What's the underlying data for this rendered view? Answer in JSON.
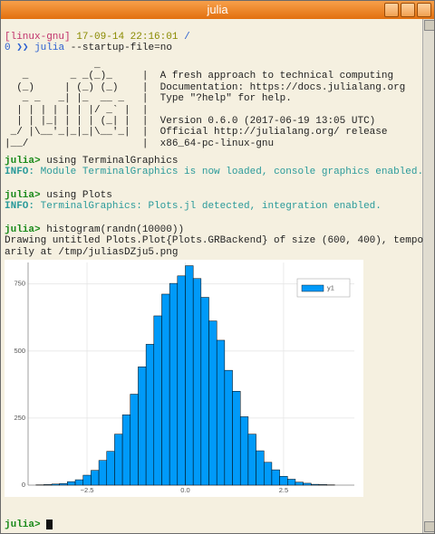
{
  "window": {
    "title": "julia"
  },
  "terminal": {
    "prompt_line": {
      "host": "[linux-gnu]",
      "time": "17-09-14 22:16:01",
      "path": "/"
    },
    "command_line": {
      "status": "0",
      "arrows": "❯❯",
      "program": "julia",
      "args": "--startup-file=no"
    },
    "banner": [
      "               _",
      "   _       _ _(_)_     |  A fresh approach to technical computing",
      "  (_)     | (_) (_)    |  Documentation: https://docs.julialang.org",
      "   _ _   _| |_  __ _   |  Type \"?help\" for help.",
      "  | | | | | | |/ _` |  |",
      "  | | |_| | | | (_| |  |  Version 0.6.0 (2017-06-19 13:05 UTC)",
      " _/ |\\__'_|_|_|\\__'_|  |  Official http://julialang.org/ release",
      "|__/                   |  x86_64-pc-linux-gnu"
    ],
    "entries": [
      {
        "prompt": "julia>",
        "input": "using TerminalGraphics",
        "info_tag": "INFO:",
        "info": "Module TerminalGraphics is now loaded, console graphics enabled."
      },
      {
        "prompt": "julia>",
        "input": "using Plots",
        "info_tag": "INFO:",
        "info": "TerminalGraphics: Plots.jl detected, integration enabled."
      },
      {
        "prompt": "julia>",
        "input": "histogram(randn(10000))",
        "output": [
          "Drawing untitled Plots.Plot{Plots.GRBackend} of size (600, 400), tempo",
          "arily at /tmp/juliasDZju5.png"
        ]
      }
    ],
    "final_prompt": "julia>"
  },
  "chart_data": {
    "type": "histogram",
    "bins": [
      -3.8,
      -3.6,
      -3.4,
      -3.2,
      -3.0,
      -2.8,
      -2.6,
      -2.4,
      -2.2,
      -2.0,
      -1.8,
      -1.6,
      -1.4,
      -1.2,
      -1.0,
      -0.8,
      -0.6,
      -0.4,
      -0.2,
      0.0,
      0.2,
      0.4,
      0.6,
      0.8,
      1.0,
      1.2,
      1.4,
      1.6,
      1.8,
      2.0,
      2.2,
      2.4,
      2.6,
      2.8,
      3.0,
      3.2,
      3.4,
      3.6,
      3.8
    ],
    "series": [
      {
        "name": "y1",
        "color": "#009af9",
        "values": [
          1,
          2,
          4,
          6,
          13,
          20,
          37,
          55,
          92,
          126,
          190,
          262,
          339,
          441,
          525,
          631,
          712,
          752,
          780,
          818,
          770,
          700,
          612,
          540,
          428,
          350,
          255,
          190,
          128,
          85,
          57,
          33,
          22,
          11,
          7,
          3,
          2,
          1
        ]
      }
    ],
    "xlim": [
      -4.0,
      4.3
    ],
    "ylim": [
      0,
      830
    ],
    "xticks": [
      {
        "value": -2.5,
        "label": "−2.5"
      },
      {
        "value": 0,
        "label": "0.0"
      },
      {
        "value": 2.5,
        "label": "2.5"
      }
    ],
    "yticks": [
      0,
      250,
      500,
      750
    ],
    "grid": true,
    "legend": "top-right"
  }
}
